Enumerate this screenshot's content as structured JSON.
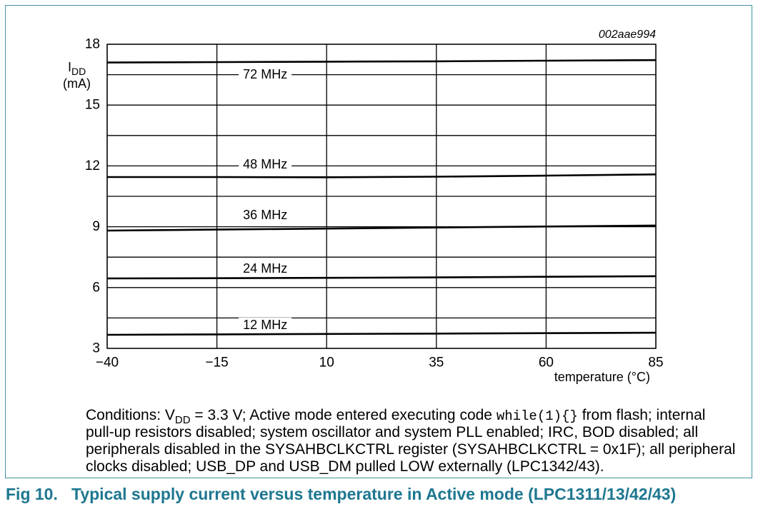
{
  "figure": {
    "id": "002aae994"
  },
  "colors": {
    "frame": "#3f929f",
    "caption": "#1e7790",
    "lines": "#000000"
  },
  "chart_data": {
    "type": "line",
    "xlabel": "temperature (°C)",
    "ylabel": {
      "symbol": "I",
      "subscript": "DD",
      "unit": "(mA)"
    },
    "xlim": [
      -40,
      85
    ],
    "ylim": [
      3,
      18
    ],
    "xticks": [
      -40,
      -15,
      10,
      35,
      60,
      85
    ],
    "xtick_labels": [
      "−40",
      "−15",
      "10",
      "35",
      "60",
      "85"
    ],
    "yticks": [
      3,
      6,
      9,
      12,
      15,
      18
    ],
    "ytick_labels": [
      "3",
      "6",
      "9",
      "12",
      "15",
      "18"
    ],
    "grid": true,
    "xgrid_step": 25,
    "ygrid_step": 1.5,
    "legend": "inline",
    "x": [
      -40,
      -15,
      10,
      35,
      60,
      85
    ],
    "series": [
      {
        "name": "72 MHz",
        "values": [
          17.1,
          17.12,
          17.14,
          17.16,
          17.19,
          17.22
        ]
      },
      {
        "name": "48 MHz",
        "values": [
          11.45,
          11.45,
          11.44,
          11.47,
          11.52,
          11.58
        ]
      },
      {
        "name": "36 MHz",
        "values": [
          8.81,
          8.86,
          8.91,
          8.96,
          9.01,
          9.06
        ]
      },
      {
        "name": "24 MHz",
        "values": [
          6.45,
          6.46,
          6.48,
          6.5,
          6.53,
          6.56
        ]
      },
      {
        "name": "12 MHz",
        "values": [
          3.67,
          3.69,
          3.71,
          3.73,
          3.75,
          3.77
        ]
      }
    ]
  },
  "conditions": {
    "line1": {
      "prefix": "Conditions: V",
      "subscript": "DD",
      "text": " = 3.3 V; Active mode entered executing code ",
      "code": "while(1){}",
      "suffix": " from flash; internal"
    },
    "line2": "pull-up resistors disabled; system oscillator and system PLL enabled; IRC, BOD disabled; all",
    "line3": "peripherals disabled in the SYSAHBCLKCTRL register (SYSAHBCLKCTRL = 0x1F); all peripheral",
    "line4": "clocks disabled; USB_DP and USB_DM pulled LOW externally (LPC1342/43)."
  },
  "caption": {
    "label": "Fig 10.",
    "title": "Typical supply current versus temperature in Active mode (LPC1311/13/42/43)"
  }
}
